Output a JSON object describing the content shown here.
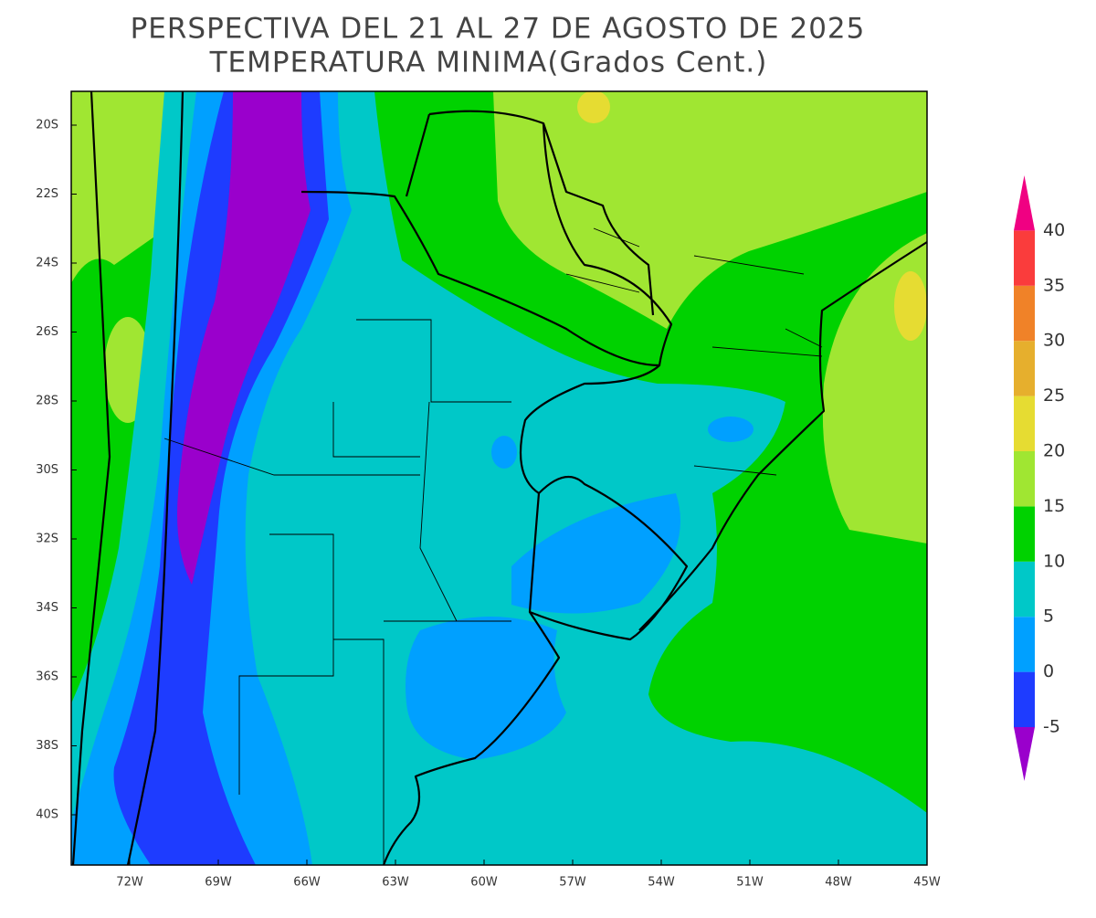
{
  "header": {
    "title": "PERSPECTIVA DEL 21 AL 27 DE AGOSTO DE 2025",
    "subtitle": "TEMPERATURA MINIMA(Grados Cent.)"
  },
  "map": {
    "lat_labels": [
      "20S",
      "22S",
      "24S",
      "26S",
      "28S",
      "30S",
      "32S",
      "34S",
      "36S",
      "38S",
      "40S"
    ],
    "lon_labels": [
      "72W",
      "69W",
      "66W",
      "63W",
      "60W",
      "57W",
      "54W",
      "51W",
      "48W",
      "45W"
    ]
  },
  "legend": {
    "labels": [
      -5,
      0,
      5,
      10,
      15,
      20,
      25,
      30,
      35,
      40
    ],
    "colors": [
      "#9a00cc",
      "#1e3cff",
      "#00a0ff",
      "#00c8c8",
      "#00d200",
      "#a0e632",
      "#e6dc32",
      "#e6af2d",
      "#f08228",
      "#fa3c3c",
      "#f00082"
    ]
  }
}
